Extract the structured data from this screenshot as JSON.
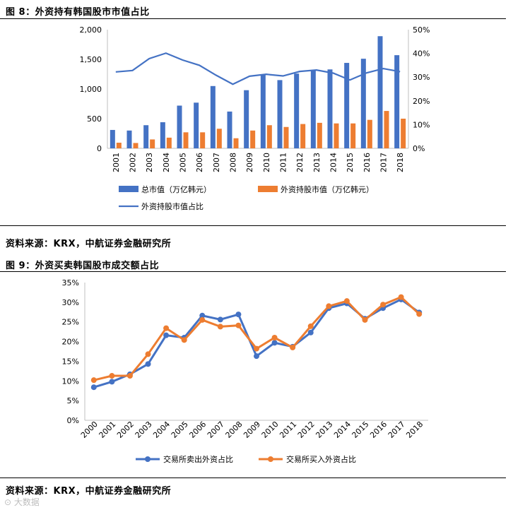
{
  "fig8": {
    "title": "图 8：外资持有韩国股市市值占比",
    "source": "资料来源：KRX，中航证券金融研究所"
  },
  "fig9": {
    "title": "图 9：外资买卖韩国股市成交额占比",
    "source": "资料来源：KRX，中航证券金融研究所"
  },
  "watermark": "⊙ 大数据",
  "colors": {
    "blue": "#4472C4",
    "orange": "#ED7D31",
    "axis": "#BFBFBF"
  },
  "chart_data": [
    {
      "type": "bar",
      "title": "外资持有韩国股市市值占比",
      "categories": [
        "2001",
        "2002",
        "2003",
        "2004",
        "2005",
        "2006",
        "2007",
        "2008",
        "2009",
        "2010",
        "2011",
        "2012",
        "2013",
        "2014",
        "2015",
        "2016",
        "2017",
        "2018"
      ],
      "series": [
        {
          "name": "总市值（万亿韩元）",
          "kind": "bar",
          "axis": "left",
          "color": "#4472C4",
          "values": [
            310,
            300,
            390,
            440,
            720,
            770,
            1050,
            620,
            980,
            1240,
            1150,
            1260,
            1310,
            1330,
            1440,
            1510,
            1890,
            1570
          ]
        },
        {
          "name": "外资持股市值（万亿韩元）",
          "kind": "bar",
          "axis": "left",
          "color": "#ED7D31",
          "values": [
            95,
            90,
            150,
            180,
            270,
            270,
            330,
            170,
            300,
            390,
            360,
            410,
            430,
            420,
            420,
            480,
            630,
            500
          ]
        },
        {
          "name": "外资持股市值占比",
          "kind": "line",
          "axis": "right",
          "color": "#4472C4",
          "values": [
            32.2,
            32.8,
            37.8,
            40.1,
            37.2,
            35.0,
            30.8,
            27.0,
            30.4,
            31.2,
            30.5,
            32.4,
            33.0,
            31.7,
            28.8,
            31.8,
            33.6,
            32.3
          ]
        }
      ],
      "y_left": {
        "min": 0,
        "max": 2000,
        "ticks": [
          "0",
          "500",
          "1,000",
          "1,500",
          "2,000"
        ]
      },
      "y_right": {
        "min": 0,
        "max": 50,
        "ticks": [
          "0%",
          "10%",
          "20%",
          "30%",
          "40%",
          "50%"
        ]
      },
      "legend": [
        "总市值（万亿韩元）",
        "外资持股市值（万亿韩元）",
        "外资持股市值占比"
      ],
      "legend_position": "bottom"
    },
    {
      "type": "line",
      "title": "外资买卖韩国股市成交额占比",
      "categories": [
        "2000",
        "2001",
        "2002",
        "2003",
        "2004",
        "2005",
        "2006",
        "2007",
        "2008",
        "2009",
        "2010",
        "2011",
        "2012",
        "2013",
        "2014",
        "2015",
        "2016",
        "2017",
        "2018"
      ],
      "series": [
        {
          "name": "交易所卖出外资占比",
          "color": "#4472C4",
          "values": [
            8.4,
            9.8,
            11.7,
            14.3,
            21.6,
            21.0,
            26.6,
            25.6,
            26.9,
            16.3,
            19.7,
            18.7,
            22.3,
            28.5,
            29.7,
            25.8,
            28.5,
            30.7,
            27.4
          ]
        },
        {
          "name": "交易所买入外资占比",
          "color": "#ED7D31",
          "values": [
            10.2,
            11.3,
            11.3,
            16.8,
            23.4,
            20.4,
            25.5,
            23.8,
            24.1,
            18.2,
            21.0,
            18.5,
            23.9,
            29.0,
            30.3,
            25.5,
            29.4,
            31.3,
            27.0
          ]
        }
      ],
      "ylim": [
        0,
        35
      ],
      "y_ticks": [
        "0%",
        "5%",
        "10%",
        "15%",
        "20%",
        "25%",
        "30%",
        "35%"
      ],
      "legend": [
        "交易所卖出外资占比",
        "交易所买入外资占比"
      ],
      "legend_position": "bottom"
    }
  ]
}
